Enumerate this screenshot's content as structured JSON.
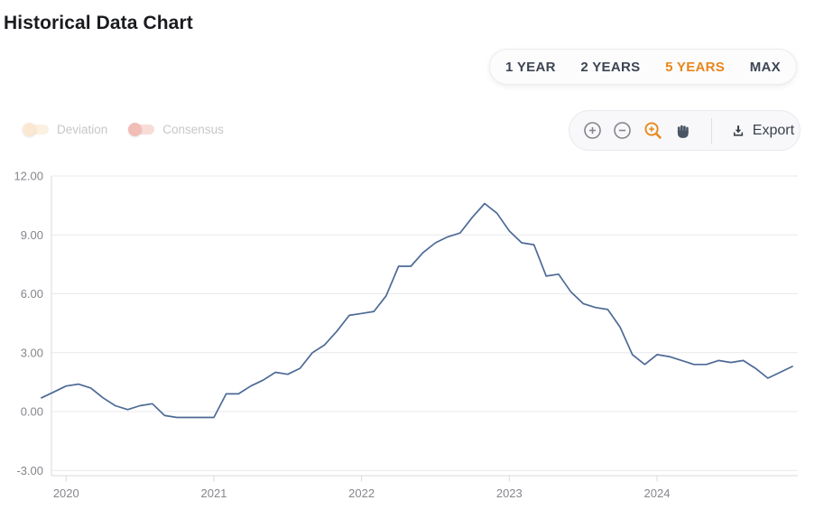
{
  "page": {
    "title": "Historical Data Chart"
  },
  "range_selector": {
    "options": [
      {
        "label": "1 YEAR",
        "active": false
      },
      {
        "label": "2 YEARS",
        "active": false
      },
      {
        "label": "5 YEARS",
        "active": true
      },
      {
        "label": "MAX",
        "active": false
      }
    ],
    "active_text_color": "#e8861a",
    "text_color": "#3d4452"
  },
  "toggles": [
    {
      "label": "Deviation",
      "state": "off",
      "track_color": "#fcf0e1",
      "knob_color": "#fbe8d2"
    },
    {
      "label": "Consensus",
      "state": "off",
      "track_color": "#f8dcd8",
      "knob_color": "#f2bdb6"
    }
  ],
  "toolbar": {
    "icons": [
      {
        "name": "zoom-in-icon",
        "color": "#84848c",
        "active": false
      },
      {
        "name": "zoom-out-icon",
        "color": "#84848c",
        "active": false
      },
      {
        "name": "zoom-selection-icon",
        "color": "#e8891e",
        "active": true
      },
      {
        "name": "pan-icon",
        "color": "#4a5563",
        "active": false
      }
    ],
    "export_label": "Export",
    "export_icon": "download-icon",
    "export_color": "#3a414d"
  },
  "chart_data": {
    "type": "line",
    "title": "Historical Data Chart",
    "frequency": "monthly",
    "x_start": "2019-10",
    "x_end": "2024-11",
    "series": [
      {
        "name": "value",
        "color": "#4d6a96",
        "values": [
          0.7,
          1.0,
          1.3,
          1.4,
          1.2,
          0.7,
          0.3,
          0.1,
          0.3,
          0.4,
          -0.2,
          -0.3,
          -0.3,
          -0.3,
          -0.3,
          0.9,
          0.9,
          1.3,
          1.6,
          2.0,
          1.9,
          2.2,
          3.0,
          3.4,
          4.1,
          4.9,
          5.0,
          5.1,
          5.9,
          7.4,
          7.4,
          8.1,
          8.6,
          8.9,
          9.1,
          9.9,
          10.6,
          10.1,
          9.2,
          8.6,
          8.5,
          6.9,
          7.0,
          6.1,
          5.5,
          5.3,
          5.2,
          4.3,
          2.9,
          2.4,
          2.9,
          2.8,
          2.6,
          2.4,
          2.4,
          2.6,
          2.5,
          2.6,
          2.2,
          1.7,
          2.0,
          2.3
        ]
      }
    ],
    "yticks": [
      {
        "label": "12.00",
        "value": 12
      },
      {
        "label": "9.00",
        "value": 9
      },
      {
        "label": "6.00",
        "value": 6
      },
      {
        "label": "3.00",
        "value": 3
      },
      {
        "label": "0.00",
        "value": 0
      },
      {
        "label": "-3.00",
        "value": -3
      }
    ],
    "xticks": [
      {
        "label": "2020",
        "month_index": 2
      },
      {
        "label": "2021",
        "month_index": 14
      },
      {
        "label": "2022",
        "month_index": 26
      },
      {
        "label": "2023",
        "month_index": 38
      },
      {
        "label": "2024",
        "month_index": 50
      }
    ],
    "ylim": [
      -3.3,
      12
    ],
    "grid": true,
    "legend": "none"
  },
  "colors": {
    "grid": "#e9e9ec",
    "axis": "#d9d9de",
    "tick_label": "#85868c",
    "title": "#1a1b1f"
  }
}
